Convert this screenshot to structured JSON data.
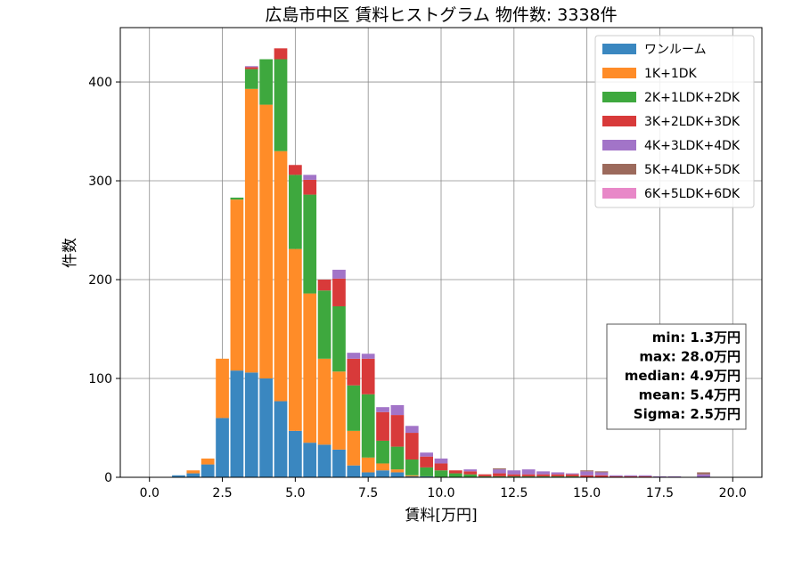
{
  "chart_data": {
    "type": "bar",
    "stacked": true,
    "title": "広島市中区 賃料ヒストグラム 物件数: 3338件",
    "xlabel": "賃料[万円]",
    "ylabel": "件数",
    "xlim": [
      -1.0,
      21.0
    ],
    "ylim": [
      0,
      455
    ],
    "bin_width": 0.5,
    "grid": true,
    "legend_position": "top-right",
    "x_ticks": [
      0.0,
      2.5,
      5.0,
      7.5,
      10.0,
      12.5,
      15.0,
      17.5,
      20.0
    ],
    "x_tick_labels": [
      "0.0",
      "2.5",
      "5.0",
      "7.5",
      "10.0",
      "12.5",
      "15.0",
      "17.5",
      "20.0"
    ],
    "y_ticks": [
      0,
      100,
      200,
      300,
      400
    ],
    "y_tick_labels": [
      "0",
      "100",
      "200",
      "300",
      "400"
    ],
    "bins": [
      1.0,
      1.5,
      2.0,
      2.5,
      3.0,
      3.5,
      4.0,
      4.5,
      5.0,
      5.5,
      6.0,
      6.5,
      7.0,
      7.5,
      8.0,
      8.5,
      9.0,
      9.5,
      10.0,
      10.5,
      11.0,
      11.5,
      12.0,
      12.5,
      13.0,
      13.5,
      14.0,
      14.5,
      15.0,
      15.5,
      16.0,
      16.5,
      17.0,
      17.5,
      18.0,
      18.5,
      19.0,
      19.5
    ],
    "series": [
      {
        "name": "ワンルーム",
        "color": "#3a87c0",
        "values": [
          2,
          4,
          13,
          60,
          108,
          106,
          100,
          77,
          47,
          35,
          33,
          28,
          12,
          5,
          7,
          5,
          1,
          1,
          0,
          0,
          0,
          0,
          0,
          0,
          0,
          0,
          0,
          0,
          0,
          0,
          0,
          0,
          0,
          0,
          0,
          0,
          0,
          0
        ]
      },
      {
        "name": "1K+1DK",
        "color": "#ff8c28",
        "values": [
          0,
          3,
          6,
          60,
          173,
          287,
          277,
          253,
          184,
          151,
          87,
          79,
          35,
          15,
          7,
          3,
          1,
          0,
          0,
          0,
          0,
          0,
          0,
          0,
          0,
          0,
          0,
          0,
          0,
          0,
          0,
          0,
          0,
          0,
          0,
          0,
          0,
          0
        ]
      },
      {
        "name": "2K+1LDK+2DK",
        "color": "#3ea83e",
        "values": [
          0,
          0,
          0,
          0,
          2,
          20,
          46,
          93,
          75,
          100,
          69,
          66,
          46,
          64,
          23,
          23,
          16,
          9,
          7,
          4,
          3,
          1,
          1,
          1,
          1,
          1,
          1,
          1,
          0,
          0,
          0,
          0,
          0,
          0,
          0,
          0,
          0,
          0
        ]
      },
      {
        "name": "3K+2LDK+3DK",
        "color": "#d83a3a",
        "values": [
          0,
          0,
          0,
          0,
          0,
          2,
          0,
          11,
          10,
          15,
          11,
          28,
          27,
          36,
          29,
          32,
          27,
          11,
          7,
          3,
          3,
          2,
          3,
          2,
          2,
          2,
          2,
          2,
          2,
          2,
          1,
          1,
          1,
          0,
          0,
          0,
          0,
          0
        ]
      },
      {
        "name": "4K+3LDK+4DK",
        "color": "#a274c8",
        "values": [
          0,
          0,
          0,
          0,
          0,
          1,
          0,
          0,
          0,
          5,
          0,
          9,
          6,
          5,
          5,
          10,
          7,
          4,
          5,
          0,
          2,
          0,
          4,
          4,
          5,
          3,
          2,
          1,
          4,
          3,
          1,
          1,
          1,
          1,
          1,
          0,
          3,
          0
        ]
      },
      {
        "name": "5K+4LDK+5DK",
        "color": "#9c6a5c",
        "values": [
          0,
          0,
          0,
          0,
          0,
          0,
          0,
          0,
          0,
          0,
          0,
          0,
          0,
          0,
          0,
          0,
          0,
          0,
          0,
          0,
          0,
          0,
          1,
          0,
          0,
          0,
          0,
          0,
          1,
          1,
          0,
          0,
          0,
          0,
          0,
          0,
          2,
          0
        ]
      },
      {
        "name": "6K+5LDK+6DK",
        "color": "#e888c8",
        "values": [
          0,
          0,
          0,
          0,
          0,
          0,
          0,
          0,
          0,
          0,
          0,
          0,
          0,
          0,
          0,
          0,
          0,
          0,
          0,
          0,
          0,
          0,
          0,
          0,
          0,
          0,
          0,
          0,
          0,
          0,
          0,
          0,
          0,
          0,
          0,
          0,
          0,
          0
        ]
      }
    ],
    "stats": [
      "min: 1.3万円",
      "max: 28.0万円",
      "median: 4.9万円",
      "mean: 5.4万円",
      "Sigma: 2.5万円"
    ]
  }
}
